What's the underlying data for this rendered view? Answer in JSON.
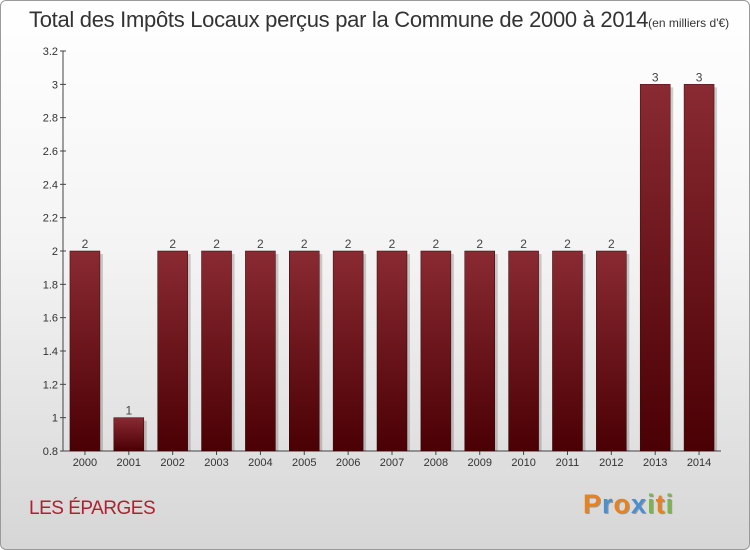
{
  "chart_data": {
    "type": "bar",
    "title": "Total des Impôts Locaux perçus par la Commune de 2000 à 2014",
    "subtitle": "(en milliers d'€)",
    "categories": [
      "2000",
      "2001",
      "2002",
      "2003",
      "2004",
      "2005",
      "2006",
      "2007",
      "2008",
      "2009",
      "2010",
      "2011",
      "2012",
      "2013",
      "2014"
    ],
    "values": [
      2,
      1,
      2,
      2,
      2,
      2,
      2,
      2,
      2,
      2,
      2,
      2,
      2,
      3,
      3
    ],
    "value_labels": [
      "2",
      "1",
      "2",
      "2",
      "2",
      "2",
      "2",
      "2",
      "2",
      "2",
      "2",
      "2",
      "2",
      "3",
      "3"
    ],
    "ylim": [
      0.8,
      3.2
    ],
    "yticks": [
      0.8,
      1,
      1.2,
      1.4,
      1.6,
      1.8,
      2,
      2.2,
      2.4,
      2.6,
      2.8,
      3,
      3.2
    ],
    "xlabel": "",
    "ylabel": "",
    "grid": false,
    "bar_color": "#7a1a22"
  },
  "commune": "LES ÉPARGES",
  "brand": {
    "letters": [
      "P",
      "r",
      "o",
      "x",
      "i",
      "t",
      "i"
    ],
    "colors": [
      "#e8821e",
      "#4a8fd0",
      "#e8821e",
      "#4a8fd0",
      "#7ab648",
      "#e8821e",
      "#7ab648"
    ]
  }
}
